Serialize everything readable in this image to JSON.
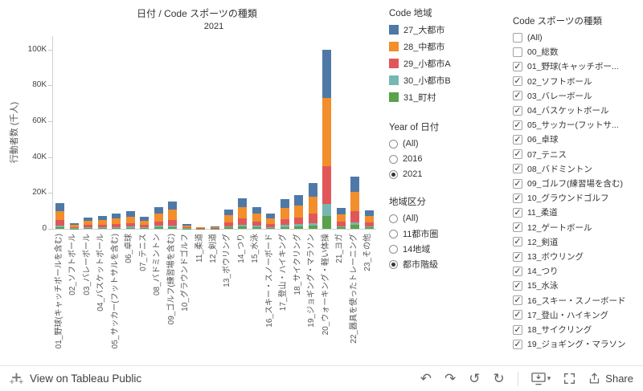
{
  "chart": {
    "title": "日付 / Code スポーツの種類",
    "year_header": "2021",
    "y_axis_label": "行動者数 (千人)",
    "y_ticks": [
      "0",
      "20K",
      "40K",
      "60K",
      "80K",
      "100K"
    ]
  },
  "chart_data": {
    "type": "bar",
    "stacked": true,
    "title": "日付 / Code スポーツの種類",
    "xlabel": "Code スポーツの種類",
    "ylabel": "行動者数 (千人)",
    "y_unit": "K (千人)",
    "ylim": [
      0,
      107.5
    ],
    "grid": false,
    "legend_title": "Code 地域",
    "legend_position": "right",
    "categories": [
      "01_野球(キャッチボールを含む)",
      "02_ソフトボール",
      "03_バレーボール",
      "04_バスケットボール",
      "05_サッカー(フットサルを含む)",
      "06_卓球",
      "07_テニス",
      "08_バドミントン",
      "09_ゴルフ(練習場を含む)",
      "10_グラウンドゴルフ",
      "11_柔道",
      "12_剣道",
      "13_ボウリング",
      "14_つり",
      "15_水泳",
      "16_スキー・スノーボード",
      "17_登山・ハイキング",
      "18_サイクリング",
      "19_ジョギング・マラソン",
      "20_ウォーキング・軽い体操",
      "21_ヨガ",
      "22_器具を使ったトレーニング",
      "23_その他"
    ],
    "series": [
      {
        "name": "27_大都市",
        "color": "#4e79a7",
        "values": [
          4.3,
          0.9,
          1.9,
          2.2,
          2.6,
          3.0,
          2.0,
          3.6,
          4.6,
          0.7,
          0.3,
          0.4,
          3.2,
          5.1,
          3.6,
          2.6,
          5.0,
          5.6,
          7.7,
          27.0,
          3.5,
          8.7,
          3.1
        ]
      },
      {
        "name": "28_中都市",
        "color": "#f28e2b",
        "values": [
          5.1,
          1.1,
          2.3,
          2.6,
          3.1,
          3.6,
          2.4,
          4.4,
          5.5,
          1.0,
          0.3,
          0.5,
          3.9,
          6.1,
          4.4,
          3.1,
          6.0,
          6.8,
          9.2,
          38.0,
          4.2,
          10.5,
          3.7
        ]
      },
      {
        "name": "29_小都市A",
        "color": "#e15759",
        "values": [
          3.0,
          0.7,
          1.3,
          1.5,
          1.8,
          2.1,
          1.4,
          2.5,
          3.2,
          0.6,
          0.2,
          0.3,
          2.3,
          3.6,
          2.5,
          1.8,
          3.5,
          3.9,
          5.4,
          21.0,
          2.5,
          6.1,
          2.2
        ]
      },
      {
        "name": "30_小都市B",
        "color": "#76b7b2",
        "values": [
          0.9,
          0.2,
          0.4,
          0.4,
          0.5,
          0.6,
          0.4,
          0.7,
          0.9,
          0.2,
          0.1,
          0.1,
          0.6,
          1.0,
          0.7,
          0.5,
          1.0,
          1.1,
          1.5,
          7.0,
          0.7,
          1.7,
          0.6
        ]
      },
      {
        "name": "31_町村",
        "color": "#59a14a",
        "values": [
          1.0,
          0.2,
          0.4,
          0.5,
          0.5,
          0.6,
          0.5,
          0.9,
          1.0,
          0.2,
          0.1,
          0.1,
          0.8,
          1.2,
          0.9,
          0.5,
          1.1,
          1.4,
          1.8,
          7.0,
          0.8,
          2.1,
          0.7
        ]
      }
    ]
  },
  "legend": {
    "title": "Code 地域",
    "items": [
      {
        "label": "27_大都市",
        "color": "#4e79a7"
      },
      {
        "label": "28_中都市",
        "color": "#f28e2b"
      },
      {
        "label": "29_小都市A",
        "color": "#e15759"
      },
      {
        "label": "30_小都市B",
        "color": "#76b7b2"
      },
      {
        "label": "31_町村",
        "color": "#59a14a"
      }
    ]
  },
  "year_filter": {
    "title": "Year of 日付",
    "options": [
      {
        "label": "(All)",
        "selected": false
      },
      {
        "label": "2016",
        "selected": false
      },
      {
        "label": "2021",
        "selected": true
      }
    ]
  },
  "region_filter": {
    "title": "地域区分",
    "options": [
      {
        "label": "(All)",
        "selected": false
      },
      {
        "label": "11都市圏",
        "selected": false
      },
      {
        "label": "14地域",
        "selected": false
      },
      {
        "label": "都市階級",
        "selected": true
      }
    ]
  },
  "sports_filter": {
    "title": "Code スポーツの種類",
    "items": [
      {
        "label": "(All)",
        "checked": false
      },
      {
        "label": "00_総数",
        "checked": false
      },
      {
        "label": "01_野球(キャッチボー...",
        "checked": true
      },
      {
        "label": "02_ソフトボール",
        "checked": true
      },
      {
        "label": "03_バレーボール",
        "checked": true
      },
      {
        "label": "04_バスケットボール",
        "checked": true
      },
      {
        "label": "05_サッカー(フットサ...",
        "checked": true
      },
      {
        "label": "06_卓球",
        "checked": true
      },
      {
        "label": "07_テニス",
        "checked": true
      },
      {
        "label": "08_バドミントン",
        "checked": true
      },
      {
        "label": "09_ゴルフ(練習場を含む)",
        "checked": true
      },
      {
        "label": "10_グラウンドゴルフ",
        "checked": true
      },
      {
        "label": "11_柔道",
        "checked": true
      },
      {
        "label": "12_ゲートボール",
        "checked": true
      },
      {
        "label": "12_剣道",
        "checked": true
      },
      {
        "label": "13_ボウリング",
        "checked": true
      },
      {
        "label": "14_つり",
        "checked": true
      },
      {
        "label": "15_水泳",
        "checked": true
      },
      {
        "label": "16_スキー・スノーボード",
        "checked": true
      },
      {
        "label": "17_登山・ハイキング",
        "checked": true
      },
      {
        "label": "18_サイクリング",
        "checked": true
      },
      {
        "label": "19_ジョギング・マラソン",
        "checked": true
      }
    ]
  },
  "toolbar": {
    "view_text": "View on Tableau Public",
    "share_label": "Share"
  },
  "icons": {
    "undo": "↶",
    "redo": "↷",
    "reset": "↺",
    "refresh": "↻",
    "caret_down": "▾",
    "check": "✓"
  }
}
